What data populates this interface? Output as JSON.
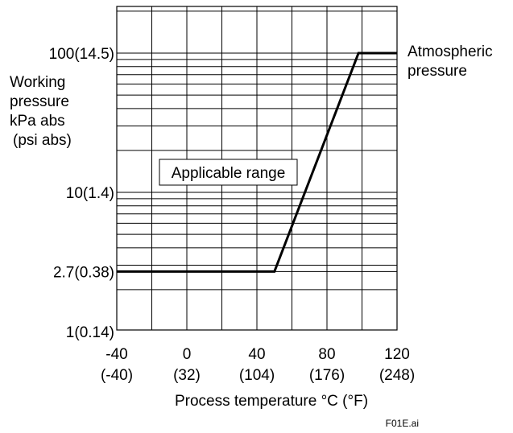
{
  "chart_data": {
    "type": "line",
    "xlabel": "Process temperature °C (°F)",
    "ylabel": [
      "Working",
      "pressure",
      "kPa abs",
      "(psi abs)"
    ],
    "xlim": [
      -40,
      120
    ],
    "ylim": [
      1,
      100
    ],
    "yscale": "log",
    "grid": true,
    "x_ticks": [
      {
        "value": -40,
        "label": "-40",
        "label2": "(-40)"
      },
      {
        "value": 0,
        "label": "0",
        "label2": "(32)"
      },
      {
        "value": 40,
        "label": "40",
        "label2": "(104)"
      },
      {
        "value": 80,
        "label": "80",
        "label2": "(176)"
      },
      {
        "value": 120,
        "label": "120",
        "label2": "(248)"
      }
    ],
    "y_ticks": [
      {
        "value": 1,
        "label": "1(0.14)"
      },
      {
        "value": 2.7,
        "label": "2.7(0.38)"
      },
      {
        "value": 10,
        "label": "10(1.4)"
      },
      {
        "value": 100,
        "label": "100(14.5)"
      }
    ],
    "series": [
      {
        "x": [
          -40,
          50,
          98,
          120
        ],
        "y": [
          2.7,
          2.7,
          100,
          100
        ]
      }
    ],
    "annotations": {
      "region_label": "Applicable range",
      "line_label": [
        "Atmospheric",
        "pressure"
      ]
    },
    "figure_id": "F01E.ai"
  }
}
